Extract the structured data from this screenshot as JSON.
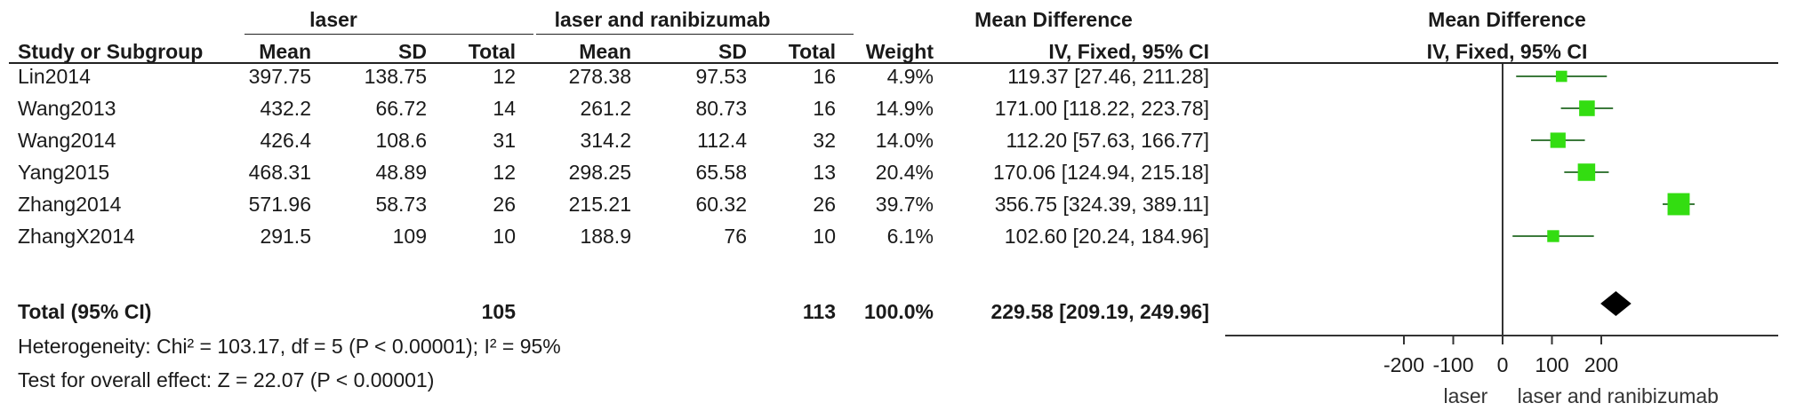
{
  "headers": {
    "group1": "laser",
    "group2": "laser and ranibizumab",
    "md_table": "Mean Difference",
    "md_plot": "Mean Difference",
    "study": "Study or Subgroup",
    "mean1": "Mean",
    "sd1": "SD",
    "total1": "Total",
    "mean2": "Mean",
    "sd2": "SD",
    "total2": "Total",
    "weight": "Weight",
    "ivfixed_table": "IV, Fixed, 95% CI",
    "ivfixed_plot": "IV, Fixed, 95% CI"
  },
  "studies": [
    {
      "name": "Lin2014",
      "mean1": "397.75",
      "sd1": "138.75",
      "total1": "12",
      "mean2": "278.38",
      "sd2": "97.53",
      "total2": "16",
      "weight": "4.9%",
      "ci": "119.37 [27.46, 211.28]"
    },
    {
      "name": "Wang2013",
      "mean1": "432.2",
      "sd1": "66.72",
      "total1": "14",
      "mean2": "261.2",
      "sd2": "80.73",
      "total2": "16",
      "weight": "14.9%",
      "ci": "171.00 [118.22, 223.78]"
    },
    {
      "name": "Wang2014",
      "mean1": "426.4",
      "sd1": "108.6",
      "total1": "31",
      "mean2": "314.2",
      "sd2": "112.4",
      "total2": "32",
      "weight": "14.0%",
      "ci": "112.20 [57.63, 166.77]"
    },
    {
      "name": "Yang2015",
      "mean1": "468.31",
      "sd1": "48.89",
      "total1": "12",
      "mean2": "298.25",
      "sd2": "65.58",
      "total2": "13",
      "weight": "20.4%",
      "ci": "170.06 [124.94, 215.18]"
    },
    {
      "name": "Zhang2014",
      "mean1": "571.96",
      "sd1": "58.73",
      "total1": "26",
      "mean2": "215.21",
      "sd2": "60.32",
      "total2": "26",
      "weight": "39.7%",
      "ci": "356.75 [324.39, 389.11]"
    },
    {
      "name": "ZhangX2014",
      "mean1": "291.5",
      "sd1": "109",
      "total1": "10",
      "mean2": "188.9",
      "sd2": "76",
      "total2": "10",
      "weight": "6.1%",
      "ci": "102.60 [20.24, 184.96]"
    }
  ],
  "total": {
    "label": "Total (95% CI)",
    "total1": "105",
    "total2": "113",
    "weight": "100.0%",
    "ci": "229.58 [209.19, 249.96]"
  },
  "heterogeneity": "Heterogeneity: Chi² = 103.17, df = 5 (P < 0.00001); I² = 95%",
  "overall_effect": "Test for overall effect: Z = 22.07 (P < 0.00001)",
  "colors": {
    "study_marker": "#33dd11",
    "ci_line": "#3c7a3c",
    "summary": "#000000",
    "axis": "#333333"
  },
  "chart_data": {
    "type": "forest",
    "xlim": [
      -250,
      420
    ],
    "xticks": [
      -200,
      -100,
      0,
      100,
      200
    ],
    "xtick_labels": [
      "-200",
      "-100",
      "0",
      "100",
      "200"
    ],
    "left_label": "laser",
    "right_label": "laser and ranibizumab",
    "studies": [
      {
        "name": "Lin2014",
        "md": 119.37,
        "lo": 27.46,
        "hi": 211.28,
        "weight": 4.9
      },
      {
        "name": "Wang2013",
        "md": 171.0,
        "lo": 118.22,
        "hi": 223.78,
        "weight": 14.9
      },
      {
        "name": "Wang2014",
        "md": 112.2,
        "lo": 57.63,
        "hi": 166.77,
        "weight": 14.0
      },
      {
        "name": "Yang2015",
        "md": 170.06,
        "lo": 124.94,
        "hi": 215.18,
        "weight": 20.4
      },
      {
        "name": "Zhang2014",
        "md": 356.75,
        "lo": 324.39,
        "hi": 389.11,
        "weight": 39.7
      },
      {
        "name": "ZhangX2014",
        "md": 102.6,
        "lo": 20.24,
        "hi": 184.96,
        "weight": 6.1
      }
    ],
    "summary": {
      "md": 229.58,
      "lo": 209.19,
      "hi": 249.96
    }
  }
}
